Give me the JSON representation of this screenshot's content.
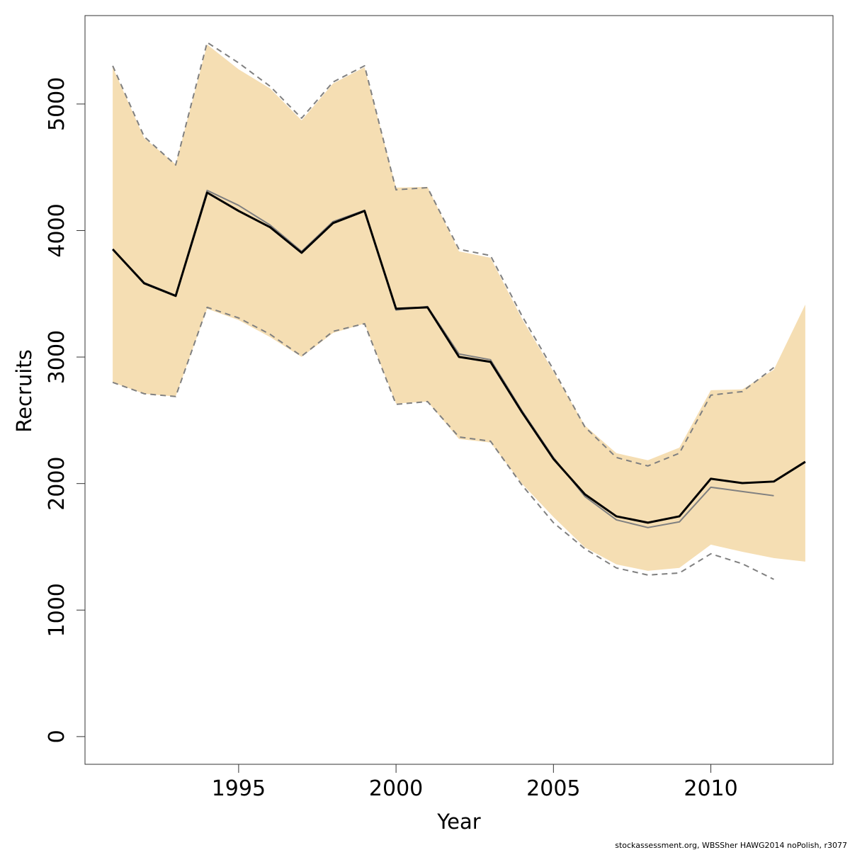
{
  "chart_data": {
    "type": "line",
    "x_label": "Year",
    "y_label": "Recruits",
    "footnote": "stockassessment.org, WBSSher HAWG2014 noPolish, r3077",
    "x": [
      1991,
      1992,
      1993,
      1994,
      1995,
      1996,
      1997,
      1998,
      1999,
      2000,
      2001,
      2002,
      2003,
      2004,
      2005,
      2006,
      2007,
      2008,
      2009,
      2010,
      2011,
      2012,
      2013
    ],
    "band": {
      "color": "#f5deb3",
      "upper": [
        5291,
        4731,
        4524,
        5470,
        5274,
        5123,
        4871,
        5162,
        5291,
        4339,
        4345,
        3835,
        3785,
        3303,
        2884,
        2458,
        2240,
        2184,
        2284,
        2738,
        2744,
        2900,
        3415
      ],
      "lower": [
        2800,
        2710,
        2688,
        3382,
        3292,
        3158,
        3001,
        3191,
        3264,
        2632,
        2648,
        2352,
        2324,
        1999,
        1736,
        1495,
        1361,
        1310,
        1333,
        1517,
        1461,
        1411,
        1383
      ]
    },
    "series": [
      {
        "color": "#808080",
        "dashed": true,
        "width": 2,
        "values": [
          5302,
          4742,
          4518,
          5487,
          5325,
          5140,
          4888,
          5174,
          5302,
          4322,
          4339,
          3852,
          3802,
          3326,
          2900,
          2447,
          2206,
          2139,
          2240,
          2699,
          2727,
          2917,
          null
        ]
      },
      {
        "color": "#808080",
        "dashed": true,
        "width": 2,
        "values": [
          2800,
          2710,
          2688,
          3393,
          3309,
          3180,
          3007,
          3203,
          3264,
          2626,
          2648,
          2368,
          2335,
          1988,
          1691,
          1484,
          1333,
          1277,
          1293,
          1445,
          1366,
          1243,
          null
        ]
      },
      {
        "color": "#808080",
        "dashed": false,
        "width": 2,
        "values": [
          3852,
          3588,
          3488,
          4317,
          4199,
          4043,
          3835,
          4071,
          4160,
          3371,
          3399,
          3024,
          2979,
          2576,
          2206,
          1898,
          1713,
          1652,
          1697,
          1971,
          1937,
          1904,
          null
        ]
      },
      {
        "color": "#000000",
        "dashed": false,
        "width": 3,
        "values": [
          3852,
          3583,
          3483,
          4300,
          4155,
          4026,
          3824,
          4059,
          4155,
          3382,
          3393,
          3001,
          2962,
          2564,
          2195,
          1915,
          1741,
          1691,
          1741,
          2038,
          2004,
          2016,
          2172
        ]
      }
    ],
    "xlim": [
      1990.12,
      2013.88
    ],
    "xticks": [
      1995,
      2000,
      2005,
      2010
    ],
    "ylim": [
      -219,
      5699
    ],
    "yticks": [
      0,
      1000,
      2000,
      3000,
      4000,
      5000
    ]
  }
}
